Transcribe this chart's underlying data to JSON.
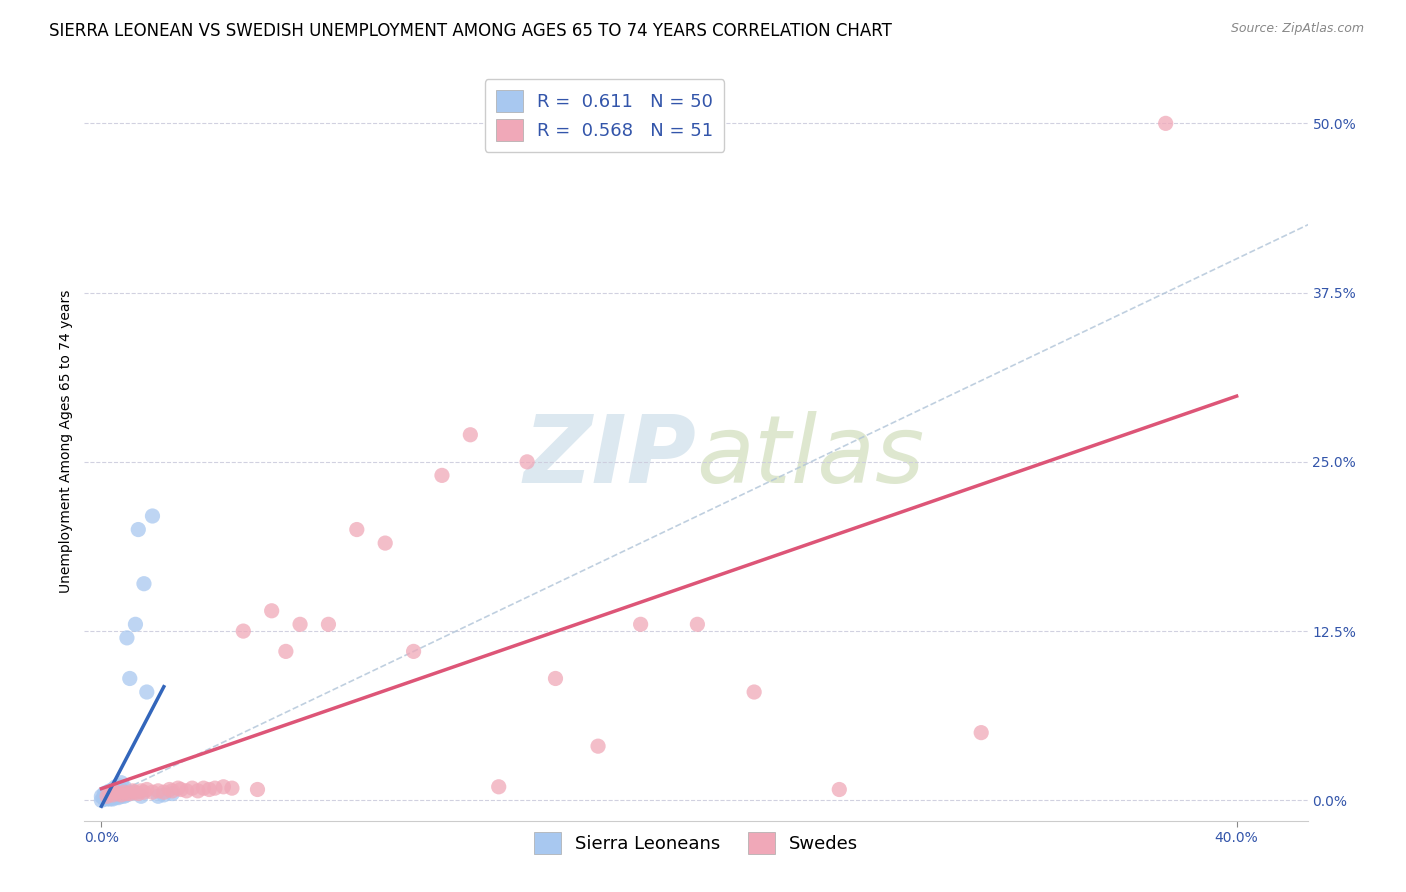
{
  "title": "SIERRA LEONEAN VS SWEDISH UNEMPLOYMENT AMONG AGES 65 TO 74 YEARS CORRELATION CHART",
  "source": "Source: ZipAtlas.com",
  "xlabel_ticks": [
    "0.0%",
    "40.0%"
  ],
  "xlabel_tick_vals": [
    0.0,
    0.4
  ],
  "ylabel_ticks": [
    "0.0%",
    "12.5%",
    "25.0%",
    "37.5%",
    "50.0%"
  ],
  "ylabel_tick_vals": [
    0.0,
    0.125,
    0.25,
    0.375,
    0.5
  ],
  "ylabel_label": "Unemployment Among Ages 65 to 74 years",
  "xlim": [
    -0.006,
    0.425
  ],
  "ylim": [
    -0.015,
    0.545
  ],
  "legend_label1": "R =  0.611   N = 50",
  "legend_label2": "R =  0.568   N = 51",
  "legend_bottom_label1": "Sierra Leoneans",
  "legend_bottom_label2": "Swedes",
  "color_sl": "#a8c8f0",
  "color_sw": "#f0a8b8",
  "color_sl_line": "#3366bb",
  "color_sw_line": "#dd5577",
  "color_diag": "#b0c4d8",
  "watermark_color": "#dce8f0",
  "background_color": "#ffffff",
  "title_fontsize": 12,
  "axis_fontsize": 10,
  "legend_fontsize": 13,
  "sl_x": [
    0.0,
    0.0,
    0.001,
    0.001,
    0.001,
    0.001,
    0.002,
    0.002,
    0.002,
    0.002,
    0.002,
    0.003,
    0.003,
    0.003,
    0.003,
    0.003,
    0.004,
    0.004,
    0.004,
    0.004,
    0.004,
    0.004,
    0.005,
    0.005,
    0.005,
    0.005,
    0.006,
    0.006,
    0.006,
    0.007,
    0.007,
    0.007,
    0.007,
    0.008,
    0.008,
    0.008,
    0.009,
    0.009,
    0.01,
    0.01,
    0.011,
    0.012,
    0.013,
    0.014,
    0.015,
    0.016,
    0.018,
    0.02,
    0.022,
    0.025
  ],
  "sl_y": [
    0.0,
    0.003,
    0.001,
    0.002,
    0.003,
    0.005,
    0.001,
    0.002,
    0.003,
    0.004,
    0.006,
    0.001,
    0.002,
    0.003,
    0.004,
    0.007,
    0.001,
    0.002,
    0.003,
    0.004,
    0.005,
    0.008,
    0.002,
    0.003,
    0.004,
    0.01,
    0.002,
    0.004,
    0.011,
    0.003,
    0.005,
    0.008,
    0.013,
    0.003,
    0.006,
    0.01,
    0.004,
    0.12,
    0.005,
    0.09,
    0.006,
    0.13,
    0.2,
    0.003,
    0.16,
    0.08,
    0.21,
    0.003,
    0.004,
    0.005
  ],
  "sw_x": [
    0.002,
    0.003,
    0.004,
    0.005,
    0.006,
    0.007,
    0.008,
    0.009,
    0.01,
    0.011,
    0.012,
    0.013,
    0.014,
    0.015,
    0.016,
    0.018,
    0.02,
    0.022,
    0.024,
    0.025,
    0.027,
    0.028,
    0.03,
    0.032,
    0.034,
    0.036,
    0.038,
    0.04,
    0.043,
    0.046,
    0.05,
    0.055,
    0.06,
    0.065,
    0.07,
    0.08,
    0.09,
    0.1,
    0.11,
    0.12,
    0.13,
    0.14,
    0.15,
    0.16,
    0.175,
    0.19,
    0.21,
    0.23,
    0.26,
    0.31,
    0.375
  ],
  "sw_y": [
    0.003,
    0.005,
    0.004,
    0.006,
    0.005,
    0.004,
    0.006,
    0.005,
    0.005,
    0.007,
    0.006,
    0.005,
    0.007,
    0.006,
    0.008,
    0.006,
    0.007,
    0.006,
    0.008,
    0.007,
    0.009,
    0.008,
    0.007,
    0.009,
    0.007,
    0.009,
    0.008,
    0.009,
    0.01,
    0.009,
    0.125,
    0.008,
    0.14,
    0.11,
    0.13,
    0.13,
    0.2,
    0.19,
    0.11,
    0.24,
    0.27,
    0.01,
    0.25,
    0.09,
    0.04,
    0.13,
    0.13,
    0.08,
    0.008,
    0.05,
    0.5
  ]
}
